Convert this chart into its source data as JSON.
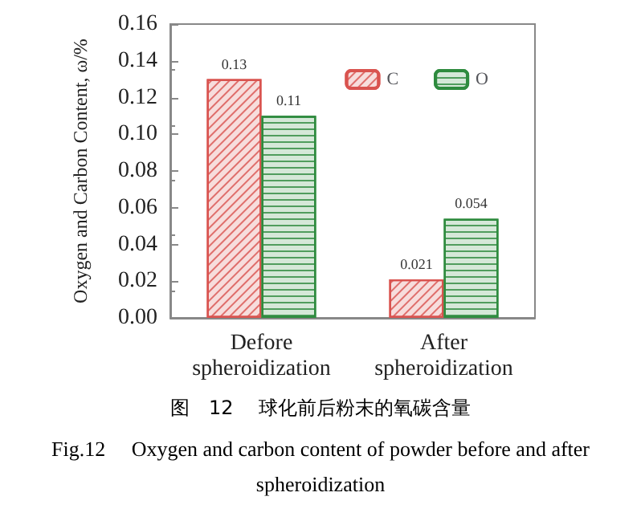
{
  "chart_data": {
    "type": "bar",
    "ylabel": "Oxygen and Carbon Content, ω/%",
    "categories": [
      "Defore\nspheroidization",
      "After\nspheroidization"
    ],
    "series": [
      {
        "name": "C",
        "color": "#d9534f",
        "values": [
          0.13,
          0.021
        ]
      },
      {
        "name": "O",
        "color": "#2e8b3e",
        "values": [
          0.11,
          0.054
        ]
      }
    ],
    "ylim": [
      0,
      0.16
    ],
    "yticks": [
      {
        "value": 0,
        "label": "0.00"
      },
      {
        "value": 0.02,
        "label": "0.02"
      },
      {
        "value": 0.04,
        "label": "0.04"
      },
      {
        "value": 0.06,
        "label": "0.06"
      },
      {
        "value": 0.08,
        "label": "0.08"
      },
      {
        "value": 0.1,
        "label": "0.10"
      },
      {
        "value": 0.12,
        "label": "0.12"
      },
      {
        "value": 0.14,
        "label": "0.14"
      },
      {
        "value": 0.16,
        "label": "0.16"
      }
    ],
    "data_labels": true,
    "legend": "top right",
    "grid": false,
    "annotations": [
      "图　12　 球化前后粉末的氧碳含量",
      "Fig.12　 Oxygen and carbon content of powder before and after spheroidization"
    ]
  }
}
